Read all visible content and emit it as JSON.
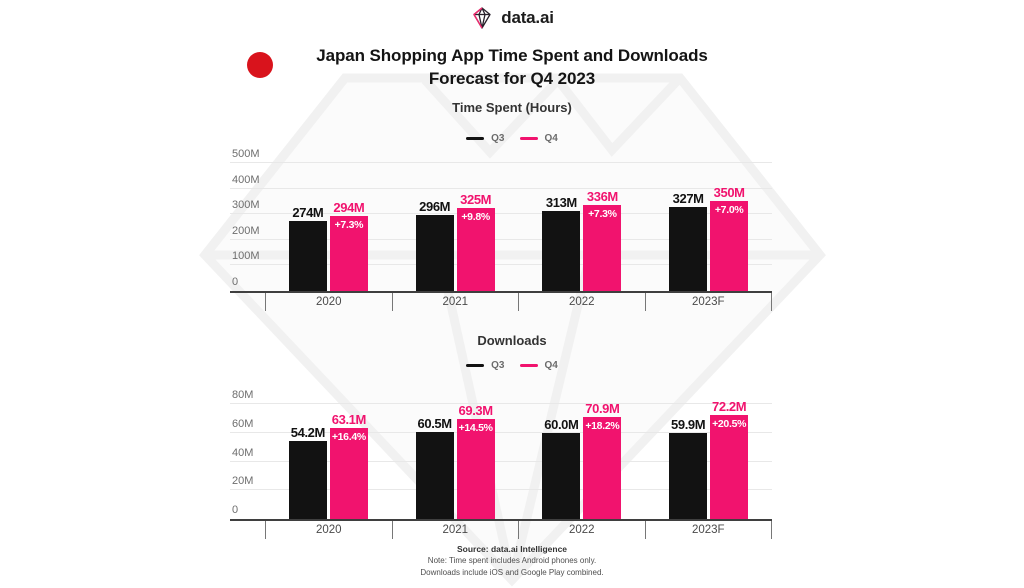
{
  "brand": {
    "name": "data.ai"
  },
  "header": {
    "title_line1": "Japan Shopping App Time Spent and Downloads",
    "title_line2": "Forecast for Q4 2023"
  },
  "colors": {
    "q3_black": "#121212",
    "q4_pink": "#f1136e",
    "flag_red": "#d9131c"
  },
  "chart_data": [
    {
      "type": "bar",
      "title": "Time Spent (Hours)",
      "legend": [
        "Q3",
        "Q4"
      ],
      "legend_position": "top",
      "grid": true,
      "categories": [
        "2020",
        "2021",
        "2022",
        "2023F"
      ],
      "unit": "millions",
      "ylim": [
        0,
        500
      ],
      "yticks": [
        {
          "label": "0",
          "value": 0
        },
        {
          "label": "100M",
          "value": 100
        },
        {
          "label": "200M",
          "value": 200
        },
        {
          "label": "300M",
          "value": 300
        },
        {
          "label": "400M",
          "value": 400
        },
        {
          "label": "500M",
          "value": 500
        }
      ],
      "series": [
        {
          "name": "Q3",
          "color": "#121212",
          "values": [
            274,
            296,
            313,
            327
          ],
          "labels": [
            "274M",
            "296M",
            "313M",
            "327M"
          ]
        },
        {
          "name": "Q4",
          "color": "#f1136e",
          "values": [
            294,
            325,
            336,
            350
          ],
          "labels": [
            "294M",
            "325M",
            "336M",
            "350M"
          ],
          "pct_change": [
            "+7.3%",
            "+9.8%",
            "+7.3%",
            "+7.0%"
          ]
        }
      ]
    },
    {
      "type": "bar",
      "title": "Downloads",
      "legend": [
        "Q3",
        "Q4"
      ],
      "legend_position": "top",
      "grid": true,
      "categories": [
        "2020",
        "2021",
        "2022",
        "2023F"
      ],
      "unit": "millions",
      "ylim": [
        0,
        80
      ],
      "yticks": [
        {
          "label": "0",
          "value": 0
        },
        {
          "label": "20M",
          "value": 20
        },
        {
          "label": "40M",
          "value": 40
        },
        {
          "label": "60M",
          "value": 60
        },
        {
          "label": "80M",
          "value": 80
        }
      ],
      "series": [
        {
          "name": "Q3",
          "color": "#121212",
          "values": [
            54.2,
            60.5,
            60.0,
            59.9
          ],
          "labels": [
            "54.2M",
            "60.5M",
            "60.0M",
            "59.9M"
          ]
        },
        {
          "name": "Q4",
          "color": "#f1136e",
          "values": [
            63.1,
            69.3,
            70.9,
            72.2
          ],
          "labels": [
            "63.1M",
            "69.3M",
            "70.9M",
            "72.2M"
          ],
          "pct_change": [
            "+16.4%",
            "+14.5%",
            "+18.2%",
            "+20.5%"
          ]
        }
      ]
    }
  ],
  "footer": {
    "source": "Source: data.ai Intelligence",
    "note1": "Note: Time spent includes Android phones only.",
    "note2": "Downloads include iOS and Google Play combined."
  }
}
